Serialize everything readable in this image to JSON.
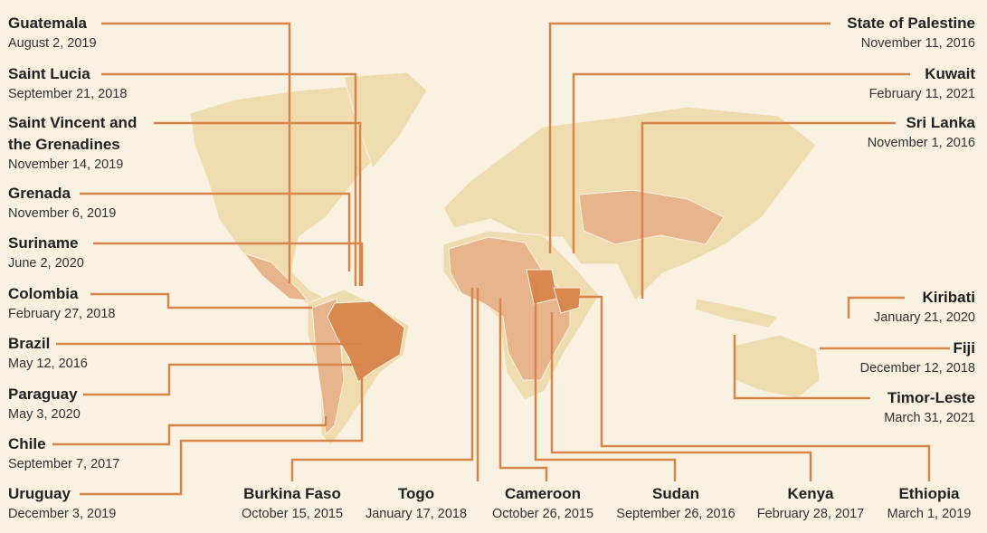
{
  "left": [
    {
      "name": "Guatemala",
      "date": "August 2, 2019"
    },
    {
      "name": "Saint Lucia",
      "date": "September 21, 2018"
    },
    {
      "name": "Saint Vincent and the Grenadines",
      "date": "November 14, 2019"
    },
    {
      "name": "Grenada",
      "date": "November 6, 2019"
    },
    {
      "name": "Suriname",
      "date": "June 2, 2020"
    },
    {
      "name": "Colombia",
      "date": "February 27, 2018"
    },
    {
      "name": "Brazil",
      "date": "May 12, 2016"
    },
    {
      "name": "Paraguay",
      "date": "May 3, 2020"
    },
    {
      "name": "Chile",
      "date": "September 7, 2017"
    },
    {
      "name": "Uruguay",
      "date": "December 3, 2019"
    }
  ],
  "right": [
    {
      "name": "State of Palestine",
      "date": "November 11, 2016"
    },
    {
      "name": "Kuwait",
      "date": "February 11, 2021"
    },
    {
      "name": "Sri Lanka",
      "date": "November 1, 2016"
    },
    {
      "name": "Kiribati",
      "date": "January 21, 2020"
    },
    {
      "name": "Fiji",
      "date": "December 12, 2018"
    },
    {
      "name": "Timor-Leste",
      "date": "March 31, 2021"
    }
  ],
  "bottom": [
    {
      "name": "Burkina Faso",
      "date": "October 15, 2015"
    },
    {
      "name": "Togo",
      "date": "January 17, 2018"
    },
    {
      "name": "Cameroon",
      "date": "October 26, 2015"
    },
    {
      "name": "Sudan",
      "date": "September 26, 2016"
    },
    {
      "name": "Kenya",
      "date": "February 28, 2017"
    },
    {
      "name": "Ethiopia",
      "date": "March 1, 2019"
    }
  ]
}
